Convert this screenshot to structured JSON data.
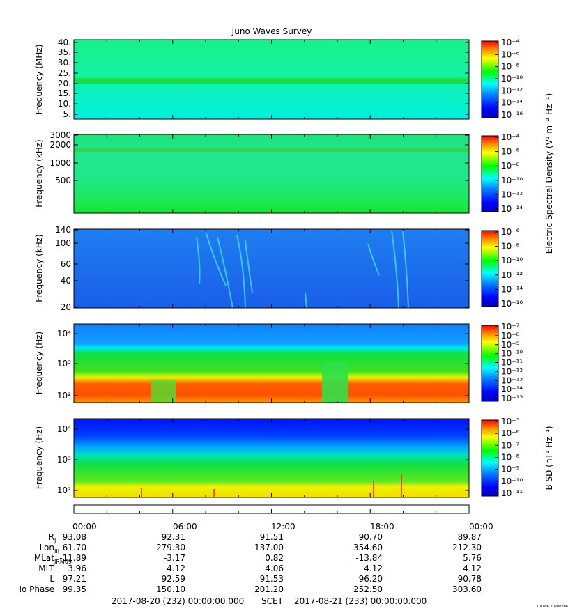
{
  "title": "Juno Waves Survey",
  "footer": {
    "left": "2017-08-20 (232) 00:00:00.000",
    "center": "SCET",
    "right": "2017-08-21 (233) 00:00:00.000",
    "tag": "UIOWA 20200306"
  },
  "shared_cbar_label": "Electric Spectral Density (V² m⁻² Hz⁻¹)",
  "panels": [
    {
      "ylabel": "Frequency (MHz)",
      "ticks": [
        "40.",
        "35.",
        "30.",
        "25.",
        "20.",
        "15.",
        "10.",
        "5."
      ],
      "cbar_ticks": [
        "10⁻⁴",
        "10⁻⁶",
        "10⁻⁸",
        "10⁻¹⁰",
        "10⁻¹²",
        "10⁻¹⁴",
        "10⁻¹⁶"
      ],
      "cbar_label": ""
    },
    {
      "ylabel": "Frequency (kHz)",
      "ticks": [
        "3000",
        "2000",
        "1000",
        "500"
      ],
      "cbar_ticks": [
        "10⁻⁴",
        "10⁻⁶",
        "10⁻⁸",
        "10⁻¹⁰",
        "10⁻¹²",
        "10⁻¹⁴"
      ],
      "cbar_label": ""
    },
    {
      "ylabel": "Frequency (kHz)",
      "ticks": [
        "140",
        "100",
        "60",
        "40",
        "20"
      ],
      "cbar_ticks": [
        "10⁻⁶",
        "10⁻⁸",
        "10⁻¹⁰",
        "10⁻¹²",
        "10⁻¹⁴",
        "10⁻¹⁶"
      ],
      "cbar_label": ""
    },
    {
      "ylabel": "Frequency (Hz)",
      "ticks": [
        "10⁴",
        "10³",
        "10²"
      ],
      "cbar_ticks": [
        "10⁻⁷",
        "10⁻⁸",
        "10⁻⁹",
        "10⁻¹⁰",
        "10⁻¹¹",
        "10⁻¹²",
        "10⁻¹³",
        "10⁻¹⁴",
        "10⁻¹⁵"
      ],
      "cbar_label": ""
    },
    {
      "ylabel": "Frequency (Hz)",
      "ticks": [
        "10⁴",
        "10³",
        "10²"
      ],
      "cbar_ticks": [
        "10⁻⁵",
        "10⁻⁶",
        "10⁻⁷",
        "10⁻⁸",
        "10⁻⁹",
        "10⁻¹⁰",
        "10⁻¹¹"
      ],
      "cbar_label": "B SD (nT² Hz⁻¹)"
    }
  ],
  "ephemeris": {
    "times": [
      "00:00",
      "06:00",
      "12:00",
      "18:00",
      "00:00"
    ],
    "rows": [
      {
        "label": "R",
        "sub": "J",
        "values": [
          "93.08",
          "92.31",
          "91.51",
          "90.70",
          "89.87"
        ]
      },
      {
        "label": "Lon",
        "sub": "III",
        "values": [
          "61.70",
          "279.30",
          "137.00",
          "354.60",
          "212.30"
        ]
      },
      {
        "label": "MLat",
        "sub": "JRM09",
        "values": [
          "-11.89",
          "-3.17",
          "0.82",
          "-13.84",
          "5.76"
        ]
      },
      {
        "label": "MLT",
        "sub": "",
        "values": [
          "3.96",
          "4.12",
          "4.06",
          "4.12",
          "4.12"
        ]
      },
      {
        "label": "L",
        "sub": "",
        "values": [
          "97.21",
          "92.59",
          "91.53",
          "96.20",
          "90.78"
        ]
      },
      {
        "label": "Io Phase",
        "sub": "",
        "values": [
          "99.35",
          "150.10",
          "201.20",
          "252.50",
          "303.60"
        ]
      }
    ]
  },
  "chart_data": {
    "type": "heatmap",
    "title": "Juno Waves Survey",
    "x_range": [
      "2017-08-20 00:00",
      "2017-08-21 00:00"
    ],
    "x_ticks": [
      "00:00",
      "06:00",
      "12:00",
      "18:00",
      "00:00"
    ],
    "colorscale": [
      "#0000b4",
      "#0000ff",
      "#0080ff",
      "#00ffff",
      "#00ff00",
      "#ffff00",
      "#ff8000",
      "#ff0000"
    ],
    "panels": [
      {
        "ylabel": "Frequency (MHz)",
        "yscale": "linear",
        "ylim": [
          3,
          42
        ],
        "clim": [
          "1e-17",
          "1e-4"
        ],
        "features": [
          {
            "name": "band",
            "freq": 21.5,
            "level": "1e-11"
          }
        ],
        "background": "1e-13"
      },
      {
        "ylabel": "Frequency (kHz)",
        "yscale": "log",
        "ylim": [
          150,
          3000
        ],
        "clim": [
          "1e-15",
          "1e-4"
        ],
        "features": [
          {
            "name": "band",
            "freq": 1700,
            "level": "1e-11"
          }
        ],
        "background": "1e-12"
      },
      {
        "ylabel": "Frequency (kHz)",
        "yscale": "log",
        "ylim": [
          20,
          140
        ],
        "clim": [
          "1e-16",
          "1e-6"
        ],
        "background": "1e-14"
      },
      {
        "ylabel": "Frequency (Hz)",
        "yscale": "log",
        "ylim": [
          50,
          20000
        ],
        "clim": [
          "1e-15",
          "1e-7"
        ],
        "background": "1e-12"
      },
      {
        "ylabel": "Frequency (Hz)",
        "yscale": "log",
        "ylim": [
          50,
          20000
        ],
        "clim": [
          "1e-11",
          "1e-5"
        ],
        "background": "1e-9"
      }
    ]
  }
}
